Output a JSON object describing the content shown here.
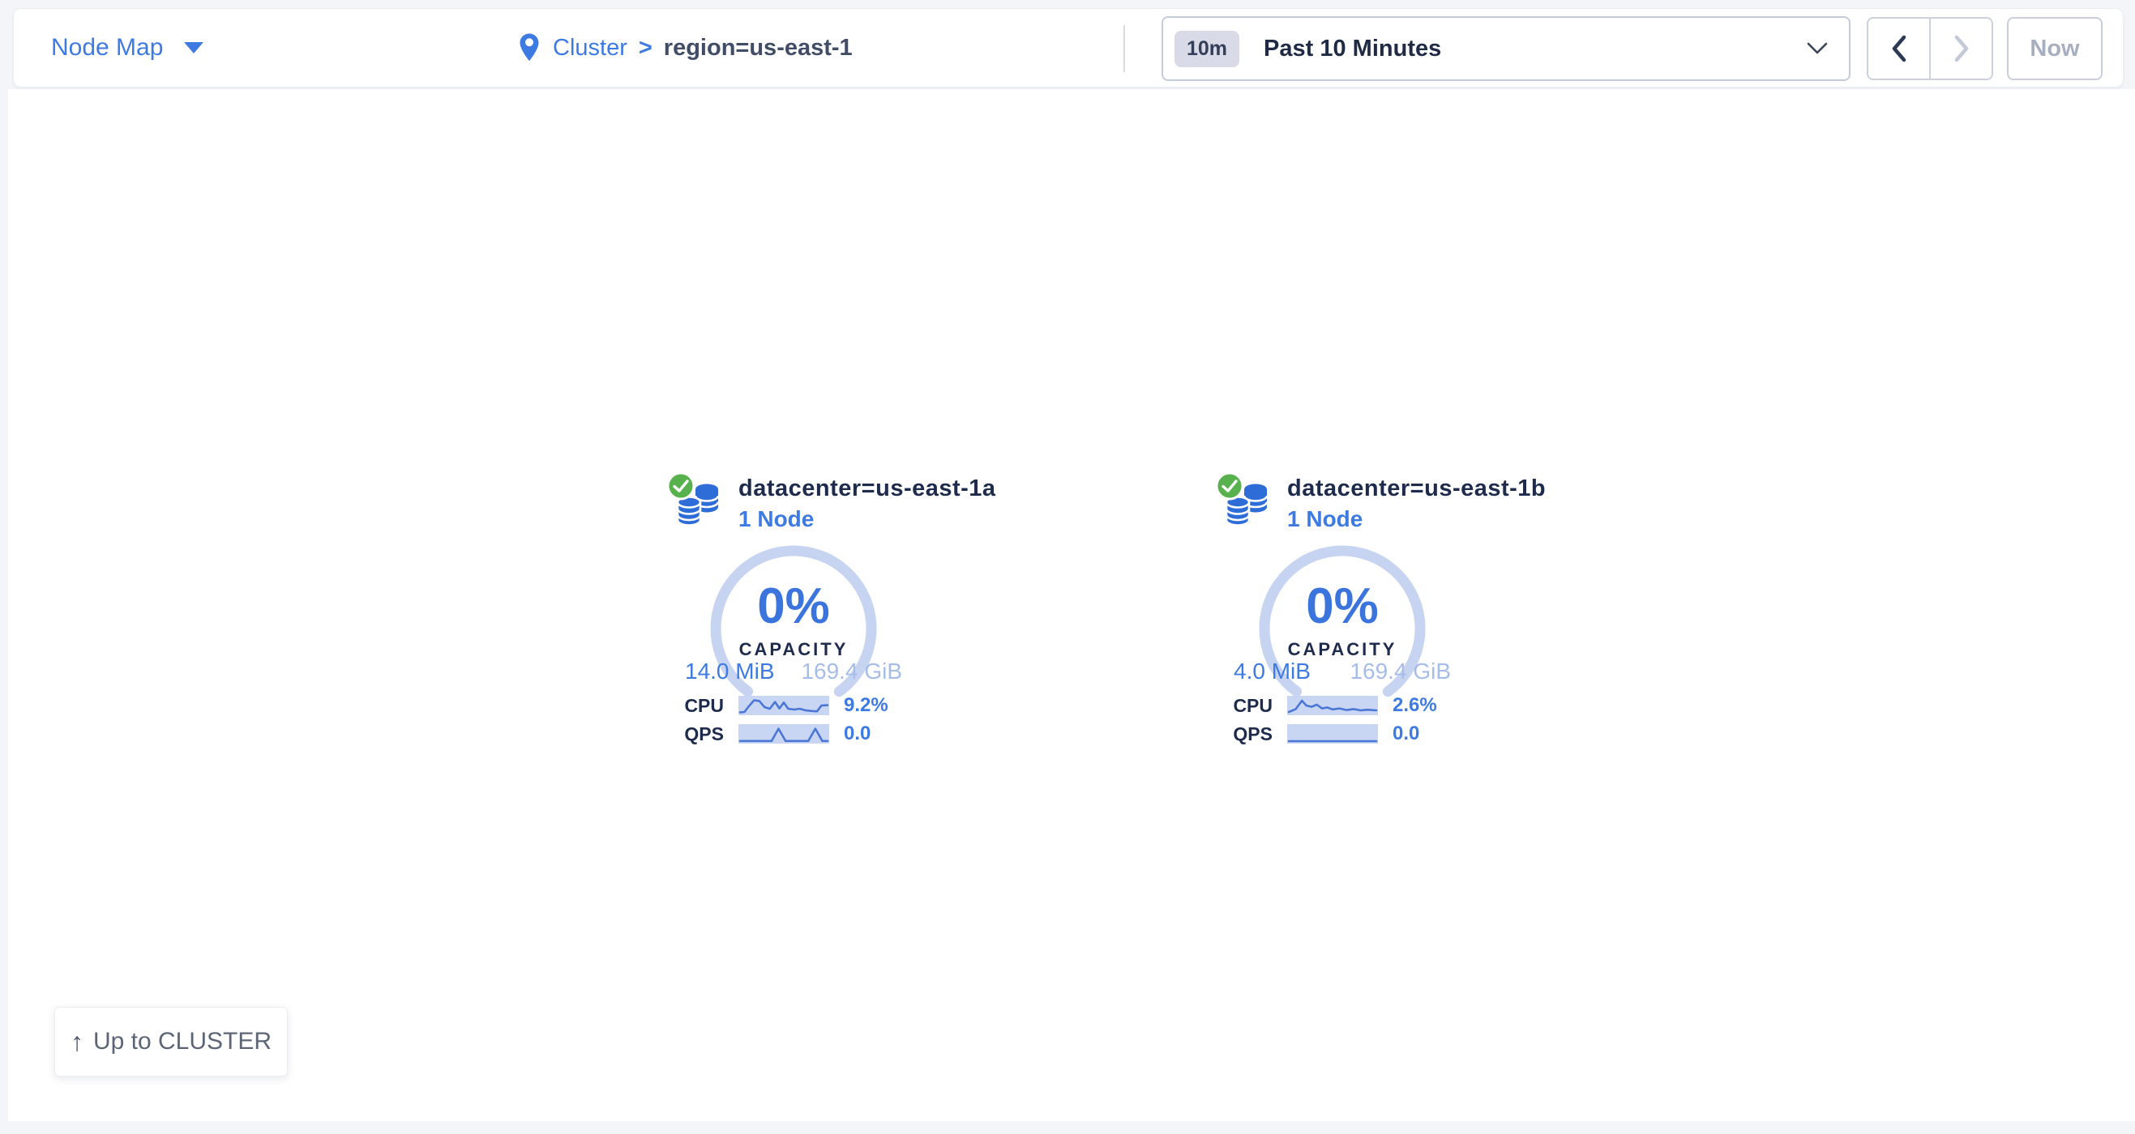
{
  "header": {
    "view_switcher": {
      "label": "Node Map"
    },
    "breadcrumb": {
      "root": "Cluster",
      "separator": ">",
      "current": "region=us-east-1"
    },
    "time_picker": {
      "badge": "10m",
      "label": "Past 10 Minutes"
    },
    "time_nav": {
      "now_label": "Now"
    }
  },
  "map": {
    "datacenters": [
      {
        "status": "healthy",
        "title": "datacenter=us-east-1a",
        "nodes_label": "1 Node",
        "capacity_pct": "0%",
        "capacity_label": "CAPACITY",
        "used": "14.0 MiB",
        "total": "169.4 GiB",
        "cpu_label": "CPU",
        "cpu_value": "9.2%",
        "qps_label": "QPS",
        "qps_value": "0.0",
        "cpu_spark": [
          [
            0,
            0.08
          ],
          [
            0.05,
            0.1
          ],
          [
            0.1,
            0.45
          ],
          [
            0.16,
            0.82
          ],
          [
            0.22,
            0.78
          ],
          [
            0.28,
            0.4
          ],
          [
            0.34,
            0.3
          ],
          [
            0.4,
            0.72
          ],
          [
            0.45,
            0.32
          ],
          [
            0.5,
            0.68
          ],
          [
            0.55,
            0.3
          ],
          [
            0.62,
            0.25
          ],
          [
            0.68,
            0.3
          ],
          [
            0.75,
            0.2
          ],
          [
            0.82,
            0.16
          ],
          [
            0.88,
            0.14
          ],
          [
            0.93,
            0.5
          ],
          [
            1,
            0.52
          ]
        ],
        "qps_spark": [
          [
            0,
            0.06
          ],
          [
            0.36,
            0.06
          ],
          [
            0.44,
            0.82
          ],
          [
            0.52,
            0.06
          ],
          [
            0.78,
            0.06
          ],
          [
            0.86,
            0.82
          ],
          [
            0.94,
            0.06
          ],
          [
            1,
            0.06
          ]
        ]
      },
      {
        "status": "healthy",
        "title": "datacenter=us-east-1b",
        "nodes_label": "1 Node",
        "capacity_pct": "0%",
        "capacity_label": "CAPACITY",
        "used": "4.0 MiB",
        "total": "169.4 GiB",
        "cpu_label": "CPU",
        "cpu_value": "2.6%",
        "qps_label": "QPS",
        "qps_value": "0.0",
        "cpu_spark": [
          [
            0,
            0.1
          ],
          [
            0.08,
            0.28
          ],
          [
            0.15,
            0.8
          ],
          [
            0.2,
            0.5
          ],
          [
            0.26,
            0.42
          ],
          [
            0.32,
            0.55
          ],
          [
            0.38,
            0.32
          ],
          [
            0.44,
            0.38
          ],
          [
            0.5,
            0.26
          ],
          [
            0.58,
            0.32
          ],
          [
            0.66,
            0.22
          ],
          [
            0.74,
            0.28
          ],
          [
            0.82,
            0.2
          ],
          [
            0.9,
            0.24
          ],
          [
            1,
            0.2
          ]
        ],
        "qps_spark": [
          [
            0,
            0.05
          ],
          [
            1,
            0.05
          ]
        ]
      }
    ],
    "up_button": {
      "label": "Up to CLUSTER"
    }
  },
  "colors": {
    "accent_blue": "#3d7ae2",
    "deep_blue": "#3a74dc",
    "icon_blue": "#2e6cd8",
    "dark_navy": "#1e2b4d",
    "ring_track": "#c7d4f1",
    "light_blue_text": "#a7bde9",
    "spark_bg": "#c9d6f3",
    "spark_line": "#4a77d6",
    "healthy_green": "#57b14c",
    "page_bg": "#f4f5f9",
    "disabled_gray": "#a7aebf"
  }
}
